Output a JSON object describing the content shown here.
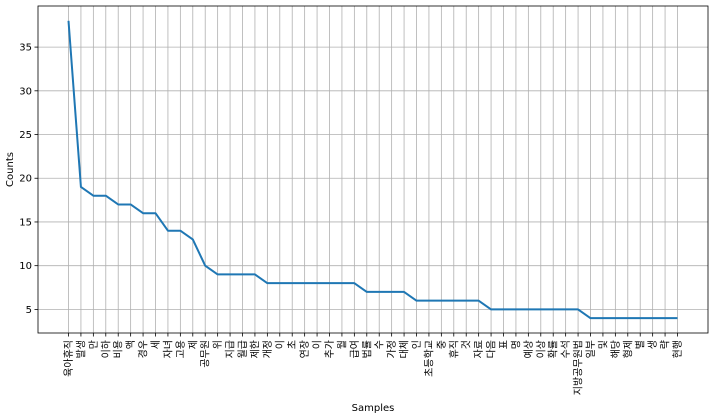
{
  "chart_data": {
    "type": "line",
    "xlabel": "Samples",
    "ylabel": "Counts",
    "ylim": [
      2.3,
      39.7
    ],
    "yticks": [
      5,
      10,
      15,
      20,
      25,
      30,
      35
    ],
    "grid": true,
    "line_color": "#1f77b4",
    "categories": [
      "육아휴직",
      "발생",
      "만",
      "이하",
      "비용",
      "액",
      "경우",
      "세",
      "자녀",
      "고용",
      "제",
      "공무원",
      "위",
      "지급",
      "월급",
      "제한",
      "개정",
      "이",
      "초",
      "연장",
      "이",
      "추가",
      "월",
      "급여",
      "법률",
      "수",
      "가정",
      "대체",
      "인",
      "초등학교",
      "중",
      "휴직",
      "것",
      "자료",
      "다음",
      "표",
      "명",
      "예상",
      "이상",
      "확률",
      "수석",
      "지방공무원법",
      "일부",
      "및",
      "해당",
      "형제",
      "별",
      "생",
      "략",
      "현행"
    ],
    "values": [
      38,
      19,
      18,
      18,
      17,
      17,
      16,
      16,
      14,
      14,
      13,
      10,
      9,
      9,
      9,
      9,
      8,
      8,
      8,
      8,
      8,
      8,
      8,
      8,
      7,
      7,
      7,
      7,
      6,
      6,
      6,
      6,
      6,
      6,
      5,
      5,
      5,
      5,
      5,
      5,
      5,
      5,
      4,
      4,
      4,
      4,
      4,
      4,
      4,
      4
    ]
  }
}
